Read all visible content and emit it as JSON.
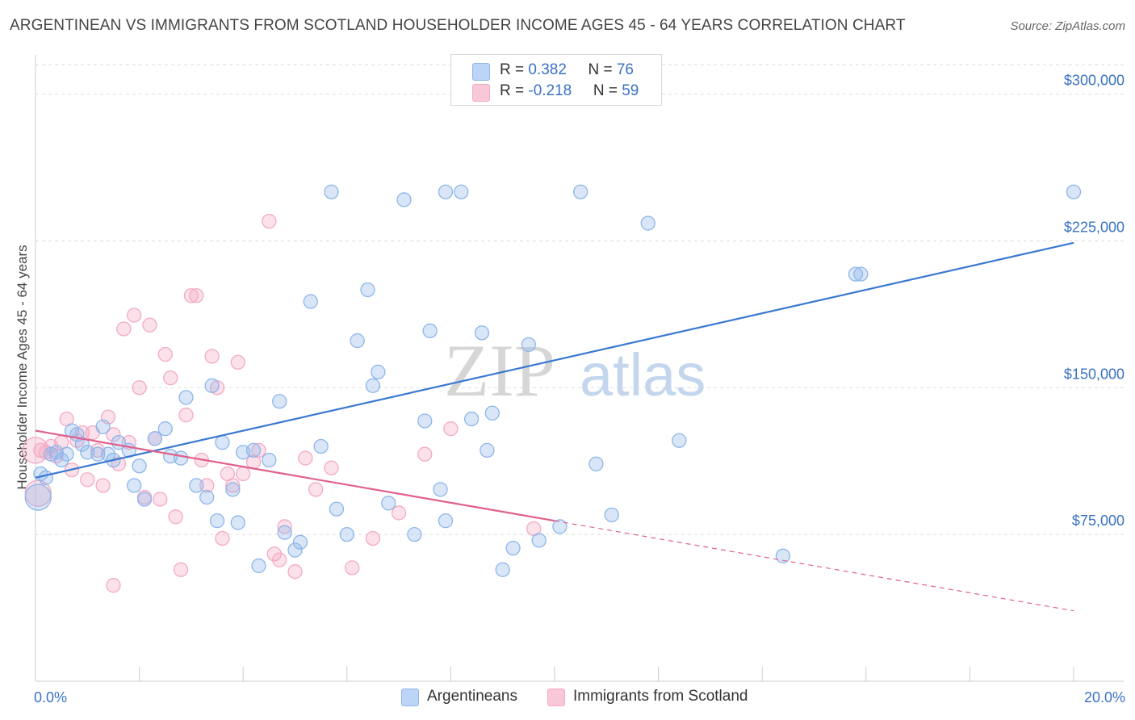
{
  "header": {
    "title": "ARGENTINEAN VS IMMIGRANTS FROM SCOTLAND HOUSEHOLDER INCOME AGES 45 - 64 YEARS CORRELATION CHART",
    "source": "Source: ZipAtlas.com"
  },
  "legend": {
    "rows": [
      {
        "r_label": "R = ",
        "r_value": "0.382",
        "n_label": "N = ",
        "n_value": "76"
      },
      {
        "r_label": "R = ",
        "r_value": "-0.218",
        "n_label": "N = ",
        "n_value": "59"
      }
    ]
  },
  "watermark": {
    "zip": "ZIP",
    "atlas": "atlas"
  },
  "chart_data": {
    "type": "scatter",
    "ylabel": "Householder Income Ages 45 - 64 years",
    "xlim": [
      0,
      20
    ],
    "ylim": [
      0,
      320000
    ],
    "x_tick_labels": [
      "0.0%",
      "20.0%"
    ],
    "y_ticks": [
      {
        "value": 75000,
        "label": "$75,000"
      },
      {
        "value": 150000,
        "label": "$150,000"
      },
      {
        "value": 225000,
        "label": "$225,000"
      },
      {
        "value": 300000,
        "label": "$300,000"
      }
    ],
    "grid": true,
    "legend_placement": "top-center",
    "series": [
      {
        "name": "Argentineans",
        "color": "#8fb6ea",
        "line_color": "#3a78d0",
        "trend": {
          "x0": 0,
          "y0": 104000,
          "x1": 20,
          "y1": 224000
        },
        "points": [
          [
            0.1,
            106000
          ],
          [
            0.2,
            104000
          ],
          [
            0.3,
            116000
          ],
          [
            0.4,
            117000
          ],
          [
            0.5,
            113000
          ],
          [
            0.6,
            116000
          ],
          [
            0.7,
            128000
          ],
          [
            0.8,
            126000
          ],
          [
            0.9,
            121000
          ],
          [
            1.0,
            117000
          ],
          [
            1.2,
            116000
          ],
          [
            1.3,
            130000
          ],
          [
            1.4,
            116000
          ],
          [
            1.5,
            113000
          ],
          [
            1.6,
            122000
          ],
          [
            1.8,
            118000
          ],
          [
            1.9,
            100000
          ],
          [
            2.0,
            110000
          ],
          [
            2.1,
            93000
          ],
          [
            2.3,
            124000
          ],
          [
            2.5,
            129000
          ],
          [
            2.6,
            115000
          ],
          [
            2.8,
            114000
          ],
          [
            2.9,
            145000
          ],
          [
            3.1,
            100000
          ],
          [
            3.3,
            94000
          ],
          [
            3.4,
            151000
          ],
          [
            3.5,
            82000
          ],
          [
            3.6,
            122000
          ],
          [
            3.8,
            98000
          ],
          [
            3.9,
            81000
          ],
          [
            4.0,
            117000
          ],
          [
            4.2,
            118000
          ],
          [
            4.3,
            59000
          ],
          [
            4.5,
            113000
          ],
          [
            4.7,
            143000
          ],
          [
            4.8,
            76000
          ],
          [
            5.0,
            67000
          ],
          [
            5.1,
            71000
          ],
          [
            5.3,
            194000
          ],
          [
            5.5,
            120000
          ],
          [
            5.7,
            250000
          ],
          [
            5.8,
            88000
          ],
          [
            6.0,
            75000
          ],
          [
            6.2,
            174000
          ],
          [
            6.4,
            200000
          ],
          [
            6.5,
            151000
          ],
          [
            6.6,
            158000
          ],
          [
            6.8,
            91000
          ],
          [
            7.1,
            246000
          ],
          [
            7.3,
            75000
          ],
          [
            7.5,
            133000
          ],
          [
            7.6,
            179000
          ],
          [
            7.8,
            98000
          ],
          [
            7.9,
            82000
          ],
          [
            7.9,
            250000
          ],
          [
            8.2,
            250000
          ],
          [
            8.4,
            134000
          ],
          [
            8.6,
            178000
          ],
          [
            8.7,
            118000
          ],
          [
            8.8,
            137000
          ],
          [
            9.0,
            57000
          ],
          [
            9.2,
            68000
          ],
          [
            9.5,
            172000
          ],
          [
            9.7,
            72000
          ],
          [
            10.1,
            79000
          ],
          [
            10.5,
            250000
          ],
          [
            10.8,
            111000
          ],
          [
            11.1,
            85000
          ],
          [
            11.8,
            234000
          ],
          [
            12.4,
            123000
          ],
          [
            14.4,
            64000
          ],
          [
            15.8,
            208000
          ],
          [
            15.9,
            208000
          ],
          [
            20.0,
            250000
          ],
          [
            0.05,
            94000
          ]
        ]
      },
      {
        "name": "Immigrants from Scotland",
        "color": "#f4aac3",
        "line_color": "#e0608c",
        "trend": {
          "x0": 0,
          "y0": 128000,
          "x1": 10,
          "y1": 82000
        },
        "trend_extension": {
          "x0": 10,
          "y0": 82000,
          "x1": 20,
          "y1": 36000
        },
        "points": [
          [
            0.1,
            118000
          ],
          [
            0.2,
            117000
          ],
          [
            0.3,
            120000
          ],
          [
            0.4,
            115000
          ],
          [
            0.5,
            122000
          ],
          [
            0.6,
            134000
          ],
          [
            0.7,
            108000
          ],
          [
            0.8,
            123000
          ],
          [
            0.9,
            127000
          ],
          [
            1.0,
            103000
          ],
          [
            1.1,
            127000
          ],
          [
            1.2,
            118000
          ],
          [
            1.3,
            100000
          ],
          [
            1.4,
            135000
          ],
          [
            1.5,
            126000
          ],
          [
            1.6,
            111000
          ],
          [
            1.7,
            180000
          ],
          [
            1.8,
            122000
          ],
          [
            1.9,
            187000
          ],
          [
            2.0,
            150000
          ],
          [
            2.1,
            94000
          ],
          [
            2.2,
            182000
          ],
          [
            2.3,
            124000
          ],
          [
            2.4,
            93000
          ],
          [
            2.5,
            167000
          ],
          [
            2.6,
            155000
          ],
          [
            2.7,
            84000
          ],
          [
            2.8,
            57000
          ],
          [
            2.9,
            136000
          ],
          [
            3.0,
            197000
          ],
          [
            3.1,
            197000
          ],
          [
            3.2,
            113000
          ],
          [
            3.3,
            100000
          ],
          [
            3.4,
            166000
          ],
          [
            3.5,
            150000
          ],
          [
            3.6,
            73000
          ],
          [
            3.7,
            106000
          ],
          [
            3.8,
            100000
          ],
          [
            3.9,
            163000
          ],
          [
            4.0,
            106000
          ],
          [
            4.2,
            112000
          ],
          [
            4.3,
            118000
          ],
          [
            4.5,
            235000
          ],
          [
            4.6,
            65000
          ],
          [
            4.7,
            62000
          ],
          [
            4.8,
            79000
          ],
          [
            5.0,
            56000
          ],
          [
            5.2,
            114000
          ],
          [
            5.4,
            98000
          ],
          [
            5.7,
            109000
          ],
          [
            6.1,
            58000
          ],
          [
            6.5,
            73000
          ],
          [
            7.0,
            86000
          ],
          [
            7.5,
            116000
          ],
          [
            8.0,
            129000
          ],
          [
            9.6,
            78000
          ],
          [
            1.5,
            49000
          ],
          [
            0.05,
            96000
          ],
          [
            0.0,
            118000
          ]
        ]
      }
    ]
  }
}
